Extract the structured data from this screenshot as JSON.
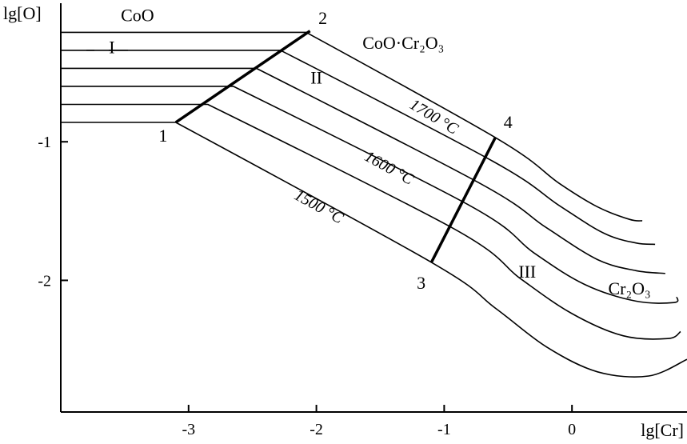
{
  "chart_data": {
    "type": "line",
    "title": "",
    "xlabel": "lg[Cr]",
    "ylabel": "lg[O]",
    "xlim": [
      -4.0,
      0.9
    ],
    "ylim": [
      -2.95,
      0.0
    ],
    "x_ticks": [
      -3,
      -2,
      -1,
      0
    ],
    "x_tick_labels": [
      "-3",
      "-2",
      "-1",
      "0"
    ],
    "y_ticks": [
      -1,
      -2
    ],
    "y_tick_labels": [
      "-1",
      "-2"
    ],
    "grid": false,
    "series": [
      {
        "label": "1500 °C",
        "points": [
          [
            -4.0,
            -0.86
          ],
          [
            -3.1,
            -0.86
          ],
          [
            -1.1,
            -1.87
          ],
          [
            -0.6,
            -2.2
          ],
          [
            -0.2,
            -2.48
          ],
          [
            0.2,
            -2.66
          ],
          [
            0.6,
            -2.69
          ],
          [
            0.9,
            -2.57
          ]
        ]
      },
      {
        "label": "",
        "points": [
          [
            -4.0,
            -0.73
          ],
          [
            -2.85,
            -0.73
          ],
          [
            -0.92,
            -1.63
          ],
          [
            -0.4,
            -1.99
          ],
          [
            0.0,
            -2.24
          ],
          [
            0.4,
            -2.4
          ],
          [
            0.75,
            -2.42
          ],
          [
            0.85,
            -2.37
          ]
        ]
      },
      {
        "label": "1600 °C",
        "points": [
          [
            -4.0,
            -0.6
          ],
          [
            -2.65,
            -0.6
          ],
          [
            -0.8,
            -1.46
          ],
          [
            -0.3,
            -1.8
          ],
          [
            0.1,
            -2.03
          ],
          [
            0.5,
            -2.15
          ],
          [
            0.8,
            -2.16
          ],
          [
            0.82,
            -2.12
          ]
        ]
      },
      {
        "label": "",
        "points": [
          [
            -4.0,
            -0.47
          ],
          [
            -2.47,
            -0.47
          ],
          [
            -0.72,
            -1.3
          ],
          [
            -0.2,
            -1.62
          ],
          [
            0.2,
            -1.85
          ],
          [
            0.5,
            -1.93
          ],
          [
            0.73,
            -1.95
          ]
        ]
      },
      {
        "label": "",
        "points": [
          [
            -4.0,
            -0.34
          ],
          [
            -2.28,
            -0.34
          ],
          [
            -0.62,
            -1.14
          ],
          [
            -0.1,
            -1.46
          ],
          [
            0.25,
            -1.66
          ],
          [
            0.5,
            -1.73
          ],
          [
            0.65,
            -1.74
          ]
        ]
      },
      {
        "label": "1700 °C",
        "points": [
          [
            -4.0,
            -0.21
          ],
          [
            -2.08,
            -0.21
          ],
          [
            -0.58,
            -0.98
          ],
          [
            -0.1,
            -1.3
          ],
          [
            0.2,
            -1.47
          ],
          [
            0.45,
            -1.56
          ],
          [
            0.55,
            -1.57
          ]
        ]
      }
    ],
    "boundaries": [
      {
        "from": "1",
        "to": "2",
        "points": [
          [
            -3.1,
            -0.86
          ],
          [
            -2.05,
            -0.2
          ]
        ]
      },
      {
        "from": "3",
        "to": "4",
        "points": [
          [
            -1.1,
            -1.87
          ],
          [
            -0.6,
            -0.97
          ]
        ]
      }
    ],
    "point_labels": [
      {
        "text": "1",
        "x": -3.2,
        "y": -1.0
      },
      {
        "text": "2",
        "x": -1.95,
        "y": -0.15
      },
      {
        "text": "3",
        "x": -1.18,
        "y": -2.06
      },
      {
        "text": "4",
        "x": -0.5,
        "y": -0.9
      }
    ],
    "region_labels": [
      {
        "text": "CoO",
        "x": -3.4,
        "y": -0.13
      },
      {
        "text": "I",
        "x": -3.6,
        "y": -0.36
      },
      {
        "text": "II",
        "x": -2.0,
        "y": -0.58
      },
      {
        "text": "III",
        "x": -0.35,
        "y": -1.98
      }
    ],
    "phase_labels": [
      {
        "text": "CoO·Cr₂O₃",
        "x": -1.32,
        "y": -0.33
      },
      {
        "text": "Cr₂O₃",
        "x": 0.45,
        "y": -2.1
      }
    ],
    "temperature_labels": [
      {
        "text": "1700 °C",
        "x": -1.1,
        "y": -0.85,
        "angle_deg": 31
      },
      {
        "text": "1600 °C",
        "x": -1.45,
        "y": -1.22,
        "angle_deg": 29
      },
      {
        "text": "1500 °C",
        "x": -2.0,
        "y": -1.5,
        "angle_deg": 29
      }
    ]
  }
}
